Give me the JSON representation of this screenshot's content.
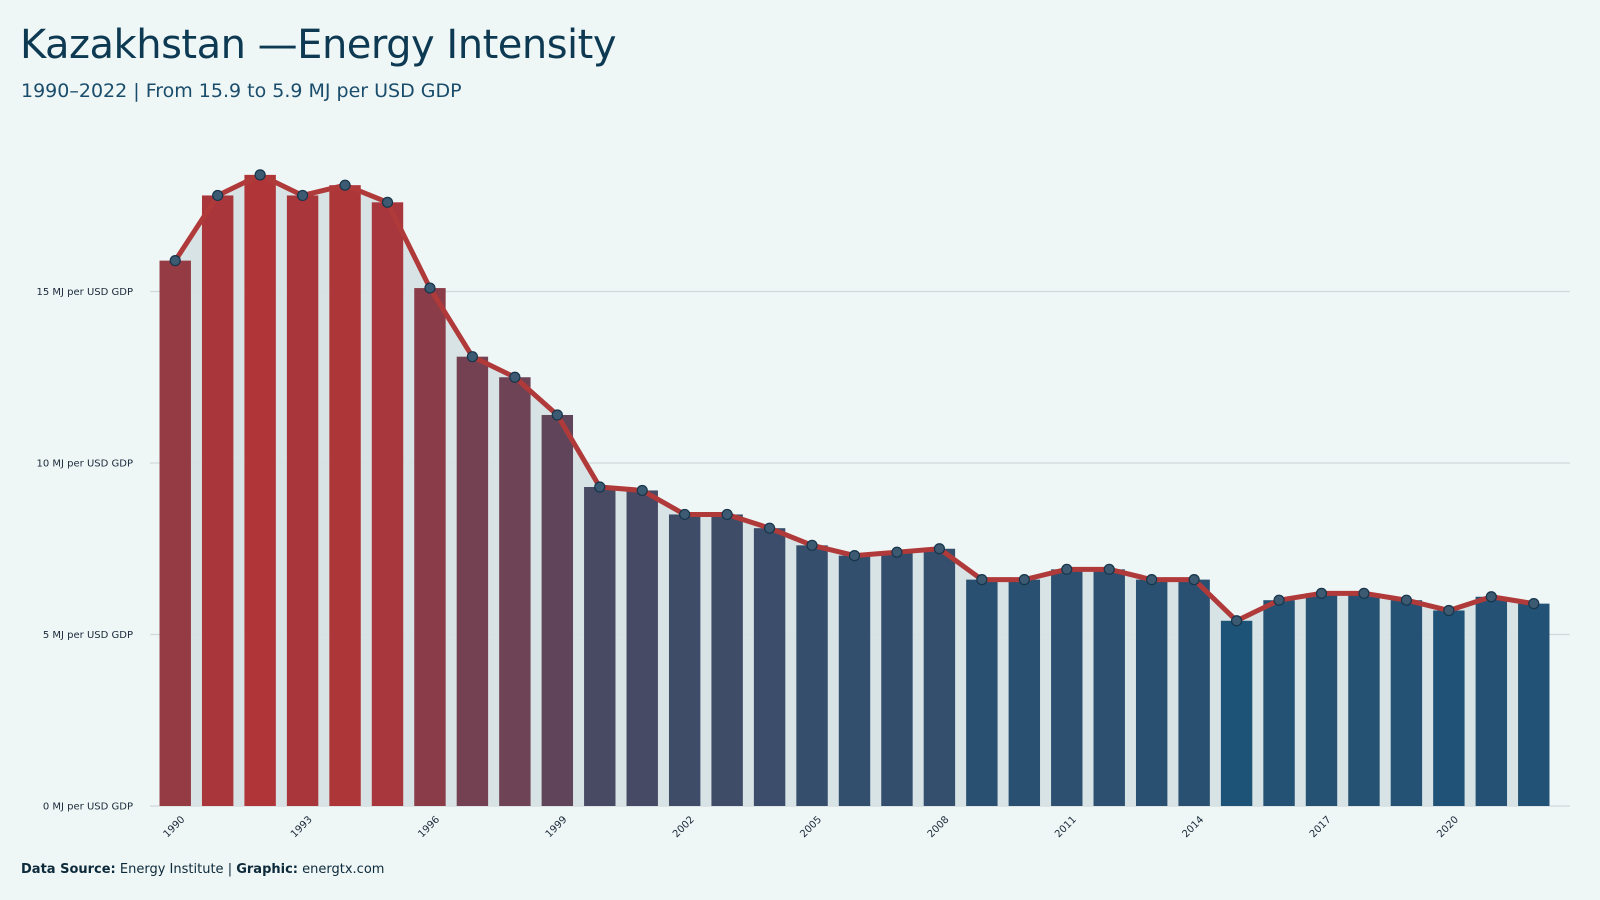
{
  "header": {
    "title": "Kazakhstan —Energy Intensity",
    "subtitle": "1990–2022 | From 15.9 to 5.9 MJ per USD GDP"
  },
  "footer": {
    "source_label": "Data Source:",
    "source_value": "Energy Institute",
    "separator": "|",
    "graphic_label": "Graphic:",
    "graphic_value": "energtx.com"
  },
  "colors": {
    "line": "#b03a3a",
    "bar_high": "#b03538",
    "bar_low": "#1c5377",
    "marker_fill": "#3d5a73",
    "background": "#eff6f6",
    "area_fill": "#d5e1e3",
    "grid": "#d0d9dc"
  },
  "chart_data": {
    "type": "bar",
    "overlay": "line",
    "x": [
      1990,
      1991,
      1992,
      1993,
      1994,
      1995,
      1996,
      1997,
      1998,
      1999,
      2000,
      2001,
      2002,
      2003,
      2004,
      2005,
      2006,
      2007,
      2008,
      2009,
      2010,
      2011,
      2012,
      2013,
      2014,
      2015,
      2016,
      2017,
      2018,
      2019,
      2020,
      2021,
      2022
    ],
    "values": [
      15.9,
      17.8,
      18.4,
      17.8,
      18.1,
      17.6,
      15.1,
      13.1,
      12.5,
      11.4,
      9.3,
      9.2,
      8.5,
      8.5,
      8.1,
      7.6,
      7.3,
      7.4,
      7.5,
      6.6,
      6.6,
      6.9,
      6.9,
      6.6,
      6.6,
      5.4,
      6.0,
      6.2,
      6.2,
      6.0,
      5.7,
      6.1,
      5.9
    ],
    "x_tick_labels": [
      "1990",
      "1993",
      "1996",
      "1999",
      "2002",
      "2005",
      "2008",
      "2011",
      "2014",
      "2017",
      "2020"
    ],
    "y_ticks": [
      0,
      5,
      10,
      15
    ],
    "y_tick_labels": [
      "0 MJ per USD GDP",
      "5 MJ per USD GDP",
      "10 MJ per USD GDP",
      "15 MJ per USD GDP"
    ],
    "ylim": [
      0,
      20
    ],
    "grid": true,
    "legend": "none"
  }
}
